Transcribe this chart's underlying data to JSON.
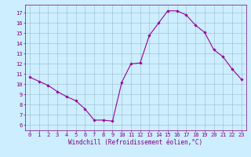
{
  "hours": [
    0,
    1,
    2,
    3,
    4,
    5,
    6,
    7,
    8,
    9,
    10,
    11,
    12,
    13,
    14,
    15,
    16,
    17,
    18,
    19,
    20,
    21,
    22,
    23
  ],
  "values": [
    10.7,
    10.3,
    9.9,
    9.3,
    8.8,
    8.4,
    7.6,
    6.5,
    6.5,
    6.4,
    10.2,
    12.0,
    12.1,
    14.8,
    16.0,
    17.2,
    17.2,
    16.8,
    15.8,
    15.1,
    13.4,
    12.7,
    11.5,
    10.5
  ],
  "line_color": "#990099",
  "marker": "D",
  "marker_size": 1.8,
  "line_width": 0.8,
  "bg_color": "#cceeff",
  "grid_color": "#99bbcc",
  "xlabel": "Windchill (Refroidissement éolien,°C)",
  "xlabel_color": "#800080",
  "tick_color": "#800080",
  "spine_color": "#800080",
  "ylim": [
    5.5,
    17.8
  ],
  "ytick_min": 6,
  "ytick_max": 17,
  "xlim": [
    -0.5,
    23.5
  ],
  "tick_fontsize": 5.0,
  "xlabel_fontsize": 5.5
}
